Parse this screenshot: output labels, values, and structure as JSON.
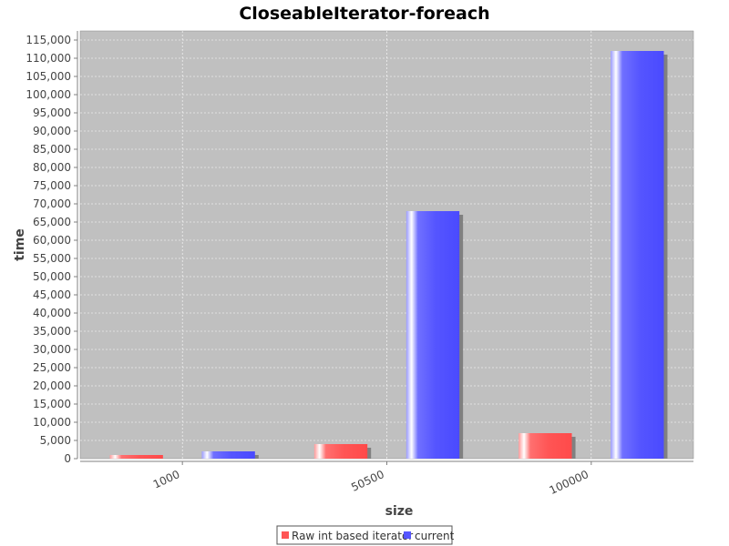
{
  "chart_data": {
    "type": "bar",
    "title": "CloseableIterator-foreach",
    "xlabel": "size",
    "ylabel": "time",
    "categories": [
      "1000",
      "50500",
      "100000"
    ],
    "series": [
      {
        "name": "Raw int based iterator",
        "color": "#ff5555",
        "values": [
          1000,
          4000,
          7000
        ]
      },
      {
        "name": "current",
        "color": "#5555ff",
        "values": [
          2000,
          68000,
          112000
        ]
      }
    ],
    "ylim": [
      0,
      117500
    ],
    "ytick_step": 5000,
    "grid": true,
    "legend_position": "bottom-center"
  }
}
